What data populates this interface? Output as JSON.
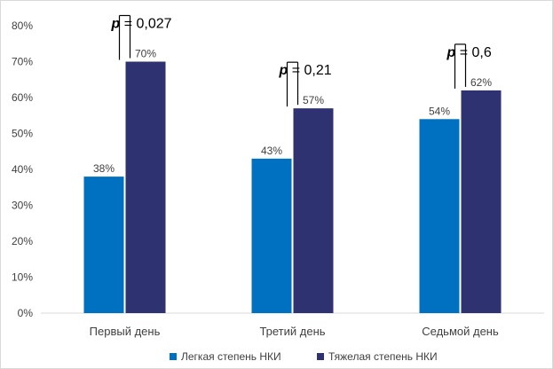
{
  "chart_data": {
    "type": "bar",
    "title": "",
    "xlabel": "",
    "ylabel": "",
    "categories": [
      "Первый день",
      "Третий день",
      "Седьмой день"
    ],
    "series": [
      {
        "name": "Легкая степень НКИ",
        "values": [
          38,
          43,
          54
        ],
        "labels": [
          "38%",
          "43%",
          "54%"
        ],
        "color": "#0070c0"
      },
      {
        "name": "Тяжелая степень НКИ",
        "values": [
          70,
          57,
          62
        ],
        "labels": [
          "70%",
          "57%",
          "62%"
        ],
        "color": "#2e3270"
      }
    ],
    "ylim": [
      0,
      80
    ],
    "yticks": [
      0,
      10,
      20,
      30,
      40,
      50,
      60,
      70,
      80
    ],
    "ytick_labels": [
      "0%",
      "10%",
      "20%",
      "30%",
      "40%",
      "50%",
      "60%",
      "70%",
      "80%"
    ],
    "grid": false,
    "legend_position": "bottom",
    "annotations": [
      {
        "category": "Первый день",
        "p_symbol": "p",
        "p_text": " = 0,027"
      },
      {
        "category": "Третий день",
        "p_symbol": "p",
        "p_text": " = 0,21"
      },
      {
        "category": "Седьмой день",
        "p_symbol": "p",
        "p_text": " = 0,6"
      }
    ]
  }
}
